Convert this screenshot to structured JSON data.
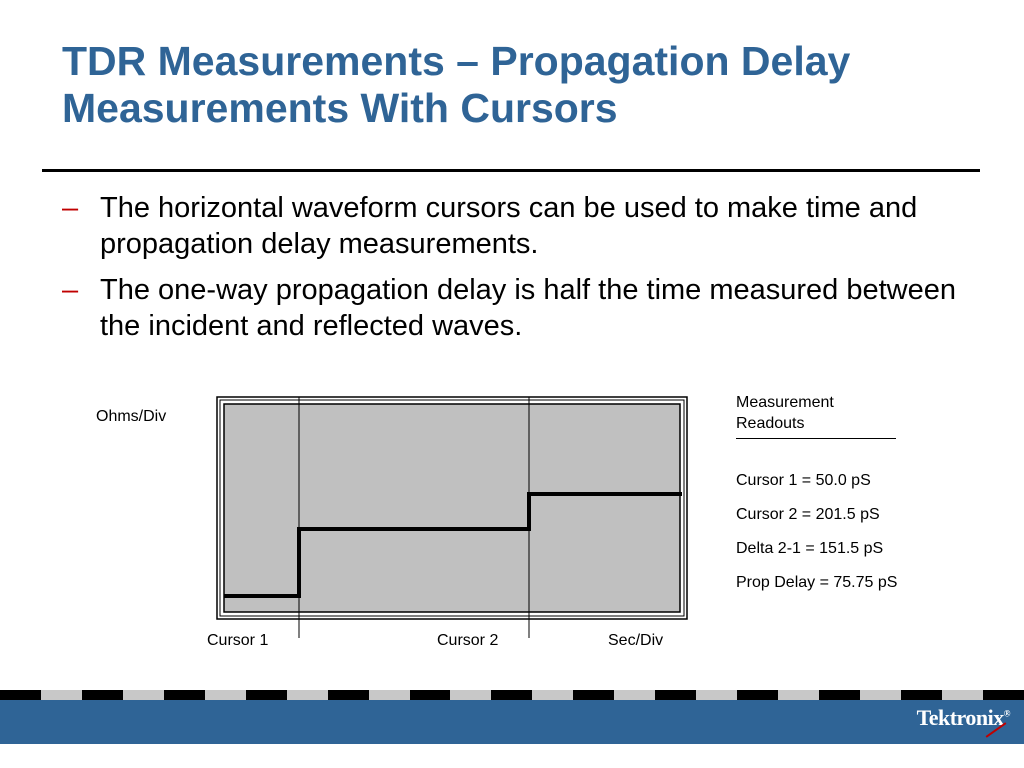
{
  "title": {
    "line1": "TDR Measurements – Propagation Delay",
    "line2": "Measurements With Cursors"
  },
  "bullets": [
    {
      "marker": "–",
      "text": "The horizontal waveform cursors can be used to make time and propagation delay measurements."
    },
    {
      "marker": "–",
      "text": "The one-way propagation delay is half the time measured between the incident and reflected waves."
    }
  ],
  "diagram": {
    "y_label": "Ohms/Div",
    "cursor1_label": "Cursor 1",
    "cursor2_label": "Cursor 2",
    "x_label": "Sec/Div"
  },
  "readouts": {
    "heading_line1": "Measurement",
    "heading_line2": "Readouts",
    "rows": [
      "Cursor 1 = 50.0 pS",
      "Cursor 2 = 201.5 pS",
      "Delta 2-1 = 151.5 pS",
      "Prop Delay = 75.75 pS"
    ]
  },
  "footer": {
    "logo_text": "Tektronix",
    "logo_reg": "®"
  },
  "colors": {
    "title": "#2f6496",
    "dash": "#c00000",
    "screen": "#c0c0c0",
    "footer": "#2f6496"
  }
}
